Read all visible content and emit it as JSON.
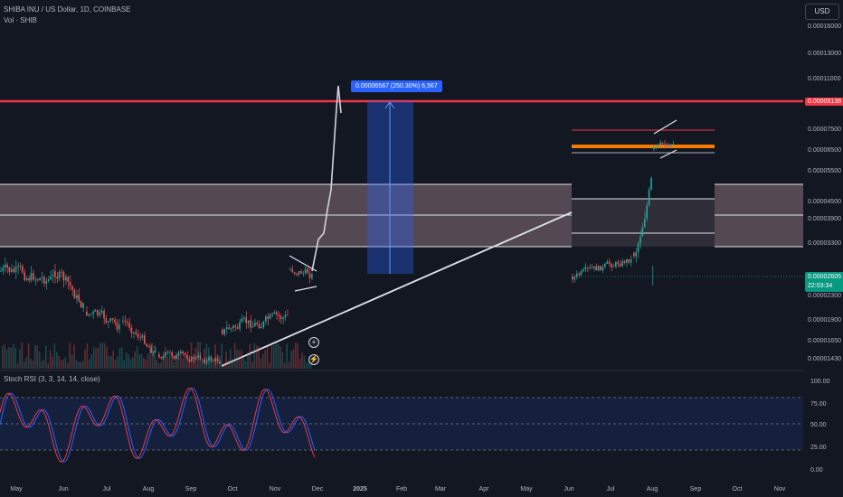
{
  "header": {
    "title": "SHIBA INU / US Dollar, 1D, COINBASE",
    "volume_label": "Vol · SHIB",
    "currency_button": "USD"
  },
  "rsi_panel": {
    "title": "Stoch RSI (3, 3, 14, 14, close)",
    "levels": [
      "100.00",
      "75.00",
      "50.00",
      "25.00",
      "0.00"
    ],
    "colors": {
      "k": "#2962ff",
      "d": "#f23645",
      "band": "#2962ff"
    }
  },
  "price_axis": {
    "labels": [
      "0.00016000",
      "0.00013000",
      "0.00011000",
      "0.00007500",
      "0.00006500",
      "0.00005500",
      "0.00004500",
      "0.00003900",
      "0.00003300",
      "0.00002300",
      "0.00001900",
      "0.00001650",
      "0.00001430"
    ]
  },
  "tags": {
    "resistance": "0.00009138",
    "last_price": "0.00002605",
    "countdown": "22:03:34"
  },
  "measure_tooltip": "0.00006567 (250.30%) 6,567",
  "time_axis": {
    "labels": [
      "May",
      "Jun",
      "Jul",
      "Aug",
      "Sep",
      "Oct",
      "Nov",
      "Dec",
      "2025",
      "Feb",
      "Mar",
      "Apr",
      "May",
      "Jun",
      "Jul",
      "Aug",
      "Sep",
      "Oct",
      "Nov"
    ]
  },
  "colors": {
    "background": "#131722",
    "up": "#26a69a",
    "down": "#ef5350",
    "resistance_line": "#f23645",
    "zone_fill": "#ffcdd2",
    "measure": "#2962ff"
  },
  "chart_data": {
    "type": "candlestick",
    "title": "SHIBA INU / US Dollar, 1D, COINBASE",
    "y_scale": "log",
    "price_labels": [
      "0.00016000",
      "0.00013000",
      "0.00011000",
      "0.00007500",
      "0.00006500",
      "0.00005500",
      "0.00004500",
      "0.00003900",
      "0.00003300",
      "0.00002300",
      "0.00001900",
      "0.00001650",
      "0.00001430"
    ],
    "x_labels": [
      "May",
      "Jun",
      "Jul",
      "Aug",
      "Sep",
      "Oct",
      "Nov",
      "Dec",
      "2025",
      "Feb",
      "Mar",
      "Apr",
      "May",
      "Jun",
      "Jul",
      "Aug",
      "Sep",
      "Oct",
      "Nov"
    ],
    "resistance_level": 9.138e-05,
    "last_price": 2.605e-05,
    "measure": {
      "change": 6.567e-05,
      "percent": 250.3,
      "ticks": 6567
    },
    "rsi_levels": [
      100,
      75,
      50,
      25,
      0
    ],
    "grid": false
  }
}
